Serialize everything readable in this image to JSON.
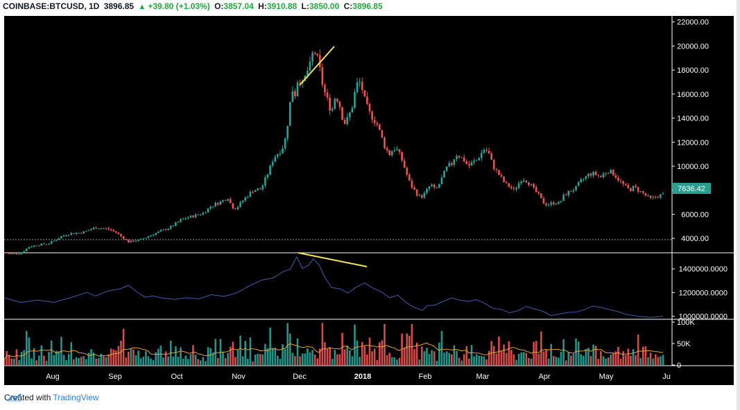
{
  "header": {
    "symbol": "COINBASE:BTCUSD, 1D",
    "price": "3896.85",
    "change": "+39.80 (+1.03%)",
    "o_label": "O:",
    "o_val": "3857.04",
    "h_label": "H:",
    "h_val": "3910.88",
    "l_label": "L:",
    "l_val": "3850.00",
    "c_label": "C:",
    "c_val": "3896.85"
  },
  "footer": {
    "created": "Created with",
    "brand": "TradingView"
  },
  "colors": {
    "up": "#26a69a",
    "down": "#ef5350",
    "line": "#3f5fa8",
    "annotation": "#f5e65a",
    "badge": "#2a9d8f"
  },
  "chart_data": [
    {
      "type": "candlestick",
      "title": "",
      "ylim": [
        2800,
        22500
      ],
      "y_ticks": [
        "22000.00",
        "20000.00",
        "18000.00",
        "16000.00",
        "14000.00",
        "12000.00",
        "10000.00",
        "8000.00",
        "6000.00",
        "4000.00"
      ],
      "last_price_label": "7636.42",
      "reference_line": 3896.85,
      "x_ticks": [
        "Aug",
        "Sep",
        "Oct",
        "Nov",
        "Dec",
        "2018",
        "Feb",
        "Mar",
        "Apr",
        "May",
        "Ju"
      ],
      "close_path": [
        [
          0,
          2800
        ],
        [
          10,
          2700
        ],
        [
          20,
          2750
        ],
        [
          30,
          3300
        ],
        [
          40,
          3450
        ],
        [
          55,
          3600
        ],
        [
          70,
          4200
        ],
        [
          80,
          4400
        ],
        [
          95,
          4500
        ],
        [
          110,
          4900
        ],
        [
          125,
          4800
        ],
        [
          135,
          4500
        ],
        [
          150,
          3700
        ],
        [
          165,
          3900
        ],
        [
          175,
          4200
        ],
        [
          185,
          4500
        ],
        [
          200,
          4900
        ],
        [
          215,
          5600
        ],
        [
          230,
          5900
        ],
        [
          240,
          6100
        ],
        [
          250,
          6700
        ],
        [
          260,
          7000
        ],
        [
          270,
          7400
        ],
        [
          275,
          6600
        ],
        [
          280,
          6500
        ],
        [
          290,
          7300
        ],
        [
          300,
          8000
        ],
        [
          310,
          8100
        ],
        [
          320,
          9700
        ],
        [
          325,
          10700
        ],
        [
          332,
          11200
        ],
        [
          338,
          11800
        ],
        [
          343,
          14000
        ],
        [
          347,
          16500
        ],
        [
          351,
          16000
        ],
        [
          355,
          17500
        ],
        [
          360,
          16800
        ],
        [
          365,
          17800
        ],
        [
          370,
          18500
        ],
        [
          373,
          19700
        ],
        [
          377,
          19200
        ],
        [
          381,
          18000
        ],
        [
          385,
          16500
        ],
        [
          390,
          15500
        ],
        [
          395,
          14500
        ],
        [
          400,
          16000
        ],
        [
          405,
          15000
        ],
        [
          410,
          13500
        ],
        [
          415,
          14000
        ],
        [
          420,
          15000
        ],
        [
          425,
          16800
        ],
        [
          430,
          17000
        ],
        [
          435,
          15500
        ],
        [
          440,
          14500
        ],
        [
          445,
          14000
        ],
        [
          450,
          13500
        ],
        [
          455,
          12500
        ],
        [
          460,
          11500
        ],
        [
          465,
          11000
        ],
        [
          470,
          11500
        ],
        [
          475,
          11300
        ],
        [
          480,
          10500
        ],
        [
          485,
          9500
        ],
        [
          490,
          8500
        ],
        [
          495,
          8000
        ],
        [
          500,
          7500
        ],
        [
          505,
          7500
        ],
        [
          510,
          8000
        ],
        [
          515,
          8500
        ],
        [
          520,
          8000
        ],
        [
          525,
          8500
        ],
        [
          530,
          9300
        ],
        [
          535,
          10000
        ],
        [
          540,
          10200
        ],
        [
          545,
          11000
        ],
        [
          550,
          10800
        ],
        [
          555,
          10500
        ],
        [
          560,
          10000
        ],
        [
          565,
          10300
        ],
        [
          570,
          10500
        ],
        [
          575,
          11000
        ],
        [
          580,
          11500
        ],
        [
          585,
          11000
        ],
        [
          590,
          10000
        ],
        [
          595,
          9500
        ],
        [
          600,
          9000
        ],
        [
          605,
          8500
        ],
        [
          610,
          8300
        ],
        [
          615,
          8000
        ],
        [
          620,
          8500
        ],
        [
          625,
          9000
        ],
        [
          630,
          8800
        ],
        [
          635,
          8500
        ],
        [
          640,
          8000
        ],
        [
          645,
          7600
        ],
        [
          650,
          7000
        ],
        [
          655,
          6800
        ],
        [
          660,
          6900
        ],
        [
          665,
          7000
        ],
        [
          670,
          6900
        ],
        [
          675,
          7500
        ],
        [
          680,
          7800
        ],
        [
          685,
          8000
        ],
        [
          690,
          8200
        ],
        [
          695,
          8700
        ],
        [
          700,
          9000
        ],
        [
          705,
          9300
        ],
        [
          710,
          9400
        ],
        [
          715,
          9300
        ],
        [
          720,
          9100
        ],
        [
          725,
          9500
        ],
        [
          730,
          9600
        ],
        [
          735,
          9400
        ],
        [
          740,
          9000
        ],
        [
          745,
          8600
        ],
        [
          750,
          8300
        ],
        [
          755,
          8000
        ],
        [
          760,
          8300
        ],
        [
          765,
          8000
        ],
        [
          770,
          7800
        ],
        [
          775,
          7500
        ],
        [
          780,
          7300
        ],
        [
          785,
          7400
        ],
        [
          790,
          7550
        ],
        [
          795,
          7636
        ]
      ]
    },
    {
      "type": "line",
      "title": "",
      "ylim": [
        980000,
        1530000
      ],
      "y_ticks": [
        "1400000.0000",
        "1200000.0000",
        "1000000.0000"
      ],
      "points": [
        [
          0,
          1160000
        ],
        [
          20,
          1120000
        ],
        [
          40,
          1140000
        ],
        [
          60,
          1120000
        ],
        [
          80,
          1150000
        ],
        [
          100,
          1200000
        ],
        [
          110,
          1170000
        ],
        [
          125,
          1210000
        ],
        [
          140,
          1230000
        ],
        [
          150,
          1260000
        ],
        [
          160,
          1200000
        ],
        [
          170,
          1160000
        ],
        [
          180,
          1170000
        ],
        [
          190,
          1150000
        ],
        [
          205,
          1140000
        ],
        [
          220,
          1150000
        ],
        [
          235,
          1150000
        ],
        [
          250,
          1180000
        ],
        [
          265,
          1170000
        ],
        [
          280,
          1200000
        ],
        [
          295,
          1250000
        ],
        [
          310,
          1300000
        ],
        [
          325,
          1330000
        ],
        [
          337,
          1380000
        ],
        [
          345,
          1400000
        ],
        [
          353,
          1500000
        ],
        [
          360,
          1400000
        ],
        [
          367,
          1430000
        ],
        [
          373,
          1490000
        ],
        [
          380,
          1430000
        ],
        [
          387,
          1330000
        ],
        [
          395,
          1240000
        ],
        [
          405,
          1230000
        ],
        [
          415,
          1200000
        ],
        [
          425,
          1250000
        ],
        [
          435,
          1280000
        ],
        [
          445,
          1240000
        ],
        [
          455,
          1200000
        ],
        [
          465,
          1160000
        ],
        [
          475,
          1180000
        ],
        [
          485,
          1120000
        ],
        [
          495,
          1070000
        ],
        [
          505,
          1050000
        ],
        [
          510,
          1090000
        ],
        [
          520,
          1100000
        ],
        [
          530,
          1130000
        ],
        [
          540,
          1160000
        ],
        [
          550,
          1140000
        ],
        [
          560,
          1120000
        ],
        [
          570,
          1140000
        ],
        [
          580,
          1110000
        ],
        [
          590,
          1070000
        ],
        [
          600,
          1060000
        ],
        [
          610,
          1030000
        ],
        [
          620,
          1050000
        ],
        [
          630,
          1080000
        ],
        [
          640,
          1060000
        ],
        [
          650,
          1040000
        ],
        [
          660,
          1010000
        ],
        [
          670,
          1020000
        ],
        [
          680,
          1030000
        ],
        [
          690,
          1040000
        ],
        [
          700,
          1060000
        ],
        [
          710,
          1080000
        ],
        [
          720,
          1070000
        ],
        [
          730,
          1060000
        ],
        [
          740,
          1040000
        ],
        [
          750,
          1020000
        ],
        [
          760,
          1010000
        ],
        [
          770,
          1000000
        ],
        [
          780,
          995000
        ],
        [
          790,
          1000000
        ],
        [
          795,
          1005000
        ]
      ]
    },
    {
      "type": "bar",
      "title": "",
      "ylim": [
        0,
        105000
      ],
      "y_ticks": [
        "100K",
        "50K",
        "0"
      ]
    }
  ]
}
